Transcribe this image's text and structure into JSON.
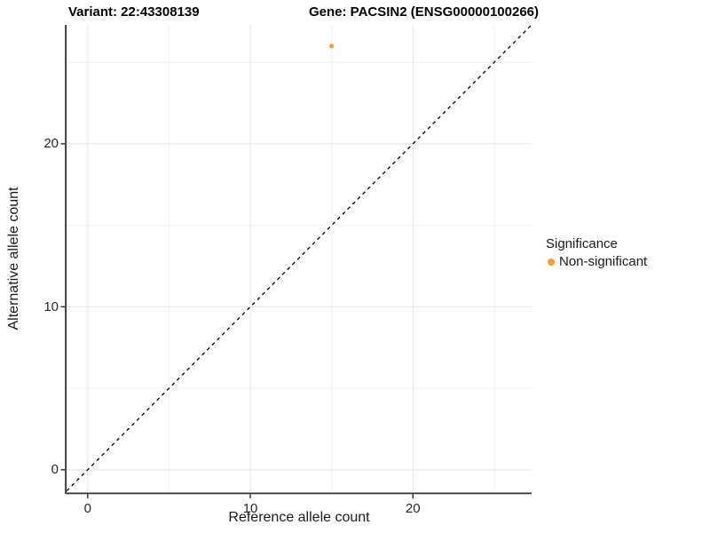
{
  "chart_data": {
    "type": "scatter",
    "title_left": "Variant: 22:43308139",
    "title_right": "Gene: PACSIN2 (ENSG00000100266)",
    "xlabel": "Reference allele count",
    "ylabel": "Alternative allele count",
    "xlim": [
      -1.3,
      27.3
    ],
    "ylim": [
      -1.4,
      27.3
    ],
    "x_ticks": [
      0,
      10,
      20
    ],
    "y_ticks": [
      0,
      10,
      20
    ],
    "x_minor_ticks": [
      5,
      15,
      25
    ],
    "y_minor_ticks": [
      5,
      15,
      25
    ],
    "grid": "major-and-minor",
    "identity_line": {
      "style": "dashed",
      "from": -1.3,
      "to": 27.3,
      "color": "#000000"
    },
    "series": [
      {
        "name": "Non-significant",
        "color": "#FA9E2A",
        "points": [
          {
            "x": 15,
            "y": 26
          }
        ]
      }
    ],
    "legend": {
      "title": "Significance",
      "position": "right",
      "entries": [
        {
          "label": "Non-significant",
          "color": "#FA9E2A",
          "marker": "dot-icon"
        }
      ]
    },
    "colors": {
      "point": "#FA9E2A",
      "grid_major": "#E4E4E4",
      "grid_minor": "#F0F0F0",
      "axis_line": "#333333",
      "panel_background": "#FFFFFF"
    }
  }
}
